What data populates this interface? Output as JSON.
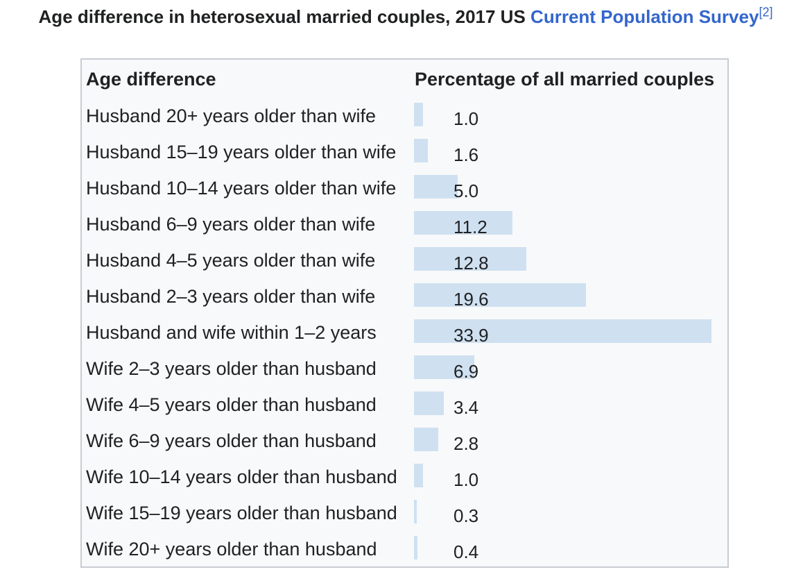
{
  "caption": {
    "text": "Age difference in heterosexual married couples, 2017 US",
    "link_text": "Current Population Survey",
    "footnote": "[2]"
  },
  "colors": {
    "bar": "#cfe0f1",
    "link": "#3366cc",
    "border": "#c8ccd1",
    "table_bg": "#f8f9fa"
  },
  "chart_data": {
    "type": "bar",
    "orientation": "horizontal",
    "xlabel": "Percentage of all married couples",
    "ylabel": "Age difference",
    "categories": [
      "Husband 20+ years older than wife",
      "Husband 15–19 years older than wife",
      "Husband 10–14 years older than wife",
      "Husband 6–9 years older than wife",
      "Husband 4–5 years older than wife",
      "Husband 2–3 years older than wife",
      "Husband and wife within 1–2 years",
      "Wife 2–3 years older than husband",
      "Wife 4–5 years older than husband",
      "Wife 6–9 years older than husband",
      "Wife 10–14 years older than husband",
      "Wife 15–19 years older than husband",
      "Wife 20+ years older than husband"
    ],
    "values": [
      1.0,
      1.6,
      5.0,
      11.2,
      12.8,
      19.6,
      33.9,
      6.9,
      3.4,
      2.8,
      1.0,
      0.3,
      0.4
    ],
    "value_labels": [
      "1.0",
      "1.6",
      "5.0",
      "11.2",
      "12.8",
      "19.6",
      "33.9",
      "6.9",
      "3.4",
      "2.8",
      "1.0",
      "0.3",
      "0.4"
    ],
    "xlim": [
      0,
      33.9
    ]
  }
}
